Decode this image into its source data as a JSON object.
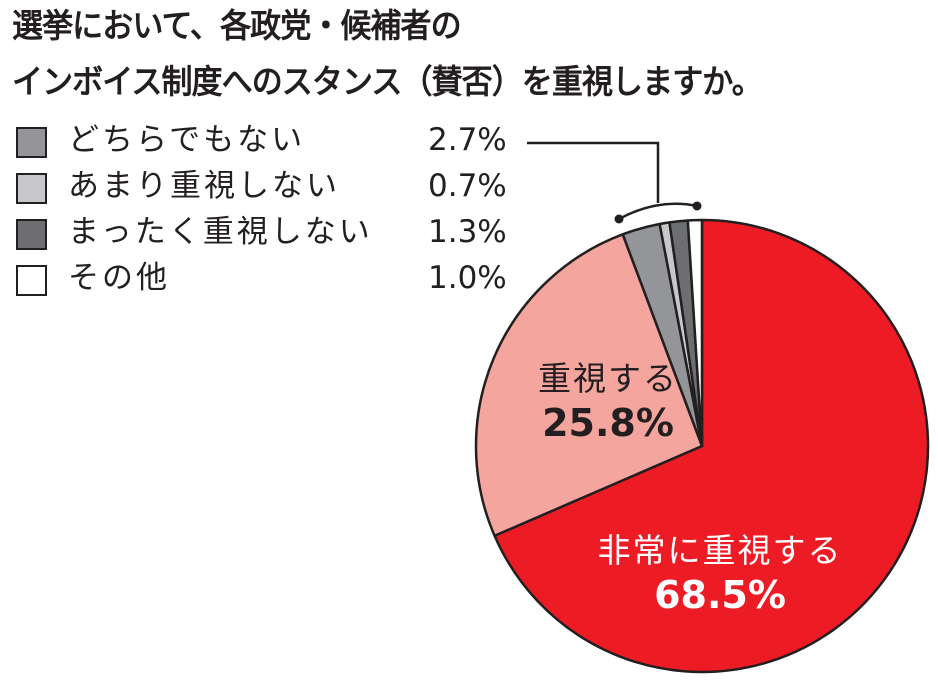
{
  "title": {
    "line1": "選挙において、各政党・候補者の",
    "line2": "インボイス制度へのスタンス（賛否）を重視しますか。"
  },
  "legend": [
    {
      "label": "どちらでもない",
      "value": "2.7%",
      "color": "#939598"
    },
    {
      "label": "あまり重視しない",
      "value": "0.7%",
      "color": "#c7c8ca"
    },
    {
      "label": "まったく重視しない",
      "value": "1.3%",
      "color": "#6d6e71"
    },
    {
      "label": "その他",
      "value": "1.0%",
      "color": "#ffffff"
    }
  ],
  "pie_labels": {
    "important": {
      "name": "重視する",
      "value": "25.8%"
    },
    "very_important": {
      "name": "非常に重視する",
      "value": "68.5%"
    }
  },
  "chart_data": {
    "type": "pie",
    "title": "選挙において、各政党・候補者のインボイス制度へのスタンス（賛否）を重視しますか。",
    "categories": [
      "非常に重視する",
      "重視する",
      "どちらでもない",
      "あまり重視しない",
      "まったく重視しない",
      "その他"
    ],
    "values": [
      68.5,
      25.8,
      2.7,
      0.7,
      1.3,
      1.0
    ],
    "colors": [
      "#ed1c24",
      "#f4a59e",
      "#939598",
      "#c7c8ca",
      "#6d6e71",
      "#ffffff"
    ],
    "unit": "%",
    "start_angle": "12 o'clock",
    "direction": "clockwise",
    "legend_position": "top-left",
    "legend_entries": [
      "どちらでもない",
      "あまり重視しない",
      "まったく重視しない",
      "その他"
    ]
  }
}
